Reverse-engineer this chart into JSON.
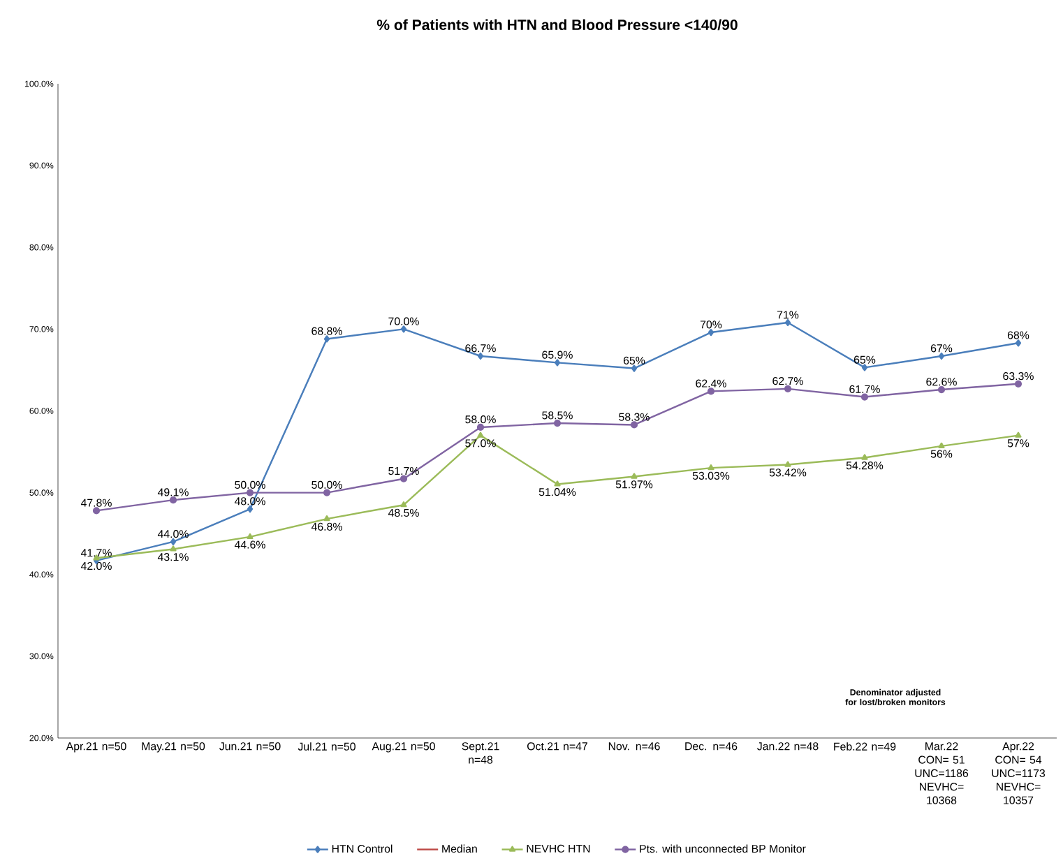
{
  "chart_data": {
    "type": "line",
    "title": "% of Patients with HTN and Blood Pressure <140/90",
    "categories": [
      "Apr.21 n=50",
      "May.21 n=50",
      "Jun.21 n=50",
      "Jul.21 n=50",
      "Aug.21 n=50",
      "Sept.21 n=48",
      "Oct.21 n=47",
      "Nov. n=46",
      "Dec. n=46",
      "Jan.22 n=48",
      "Feb.22 n=49",
      "Mar.22 CON= 51 UNC=1186 NEVHC= 10368",
      "Apr.22 CON= 54 UNC=1173 NEVHC= 10357"
    ],
    "series": [
      {
        "name": "HTN Control",
        "color": "#4a7ebb",
        "marker": "diamond",
        "values": [
          41.7,
          44.0,
          48.0,
          68.8,
          70.0,
          66.7,
          65.9,
          65.2,
          69.6,
          70.8,
          65.3,
          66.7,
          68.3
        ],
        "value_labels": [
          "41.7%",
          "44.0%",
          "48.0%",
          "68.8%",
          "70.0%",
          "66.7%",
          "65.9%",
          "65%",
          "70%",
          "71%",
          "65%",
          "67%",
          "68%"
        ]
      },
      {
        "name": "Median",
        "color": "#be4b48",
        "marker": "none",
        "values": [
          null,
          null,
          null,
          null,
          null,
          null,
          null,
          null,
          null,
          null,
          null,
          null,
          null
        ]
      },
      {
        "name": "NEVHC HTN",
        "color": "#9bbb59",
        "marker": "triangle",
        "values": [
          42.0,
          43.1,
          44.6,
          46.8,
          48.5,
          57.0,
          51.04,
          51.97,
          53.03,
          53.42,
          54.28,
          55.7,
          57.0
        ],
        "value_labels": [
          "42.0%",
          "43.1%",
          "44.6%",
          "46.8%",
          "48.5%",
          "57.0%",
          "51.04%",
          "51.97%",
          "53.03%",
          "53.42%",
          "54.28%",
          "56%",
          "57%"
        ]
      },
      {
        "name": "Pts. with unconnected BP Monitor",
        "color": "#8064a2",
        "marker": "circle",
        "values": [
          47.8,
          49.1,
          50.0,
          50.0,
          51.7,
          58.0,
          58.5,
          58.3,
          62.4,
          62.7,
          61.7,
          62.6,
          63.3
        ],
        "value_labels": [
          "47.8%",
          "49.1%",
          "50.0%",
          "50.0%",
          "51.7%",
          "58.0%",
          "58.5%",
          "58.3%",
          "62.4%",
          "62.7%",
          "61.7%",
          "62.6%",
          "63.3%"
        ]
      }
    ],
    "ylim": [
      20,
      100
    ],
    "yticks": [
      {
        "value": 20,
        "label": "20.0%"
      },
      {
        "value": 30,
        "label": "30.0%"
      },
      {
        "value": 40,
        "label": "40.0%"
      },
      {
        "value": 50,
        "label": "50.0%"
      },
      {
        "value": 60,
        "label": "60.0%"
      },
      {
        "value": 70,
        "label": "70.0%"
      },
      {
        "value": 80,
        "label": "80.0%"
      },
      {
        "value": 90,
        "label": "90.0%"
      },
      {
        "value": 100,
        "label": "100.0%"
      }
    ],
    "grid": false,
    "legend": "bottom",
    "line_style": "solid",
    "annotations": [
      "Denominator adjusted for lost/broken monitors"
    ]
  }
}
